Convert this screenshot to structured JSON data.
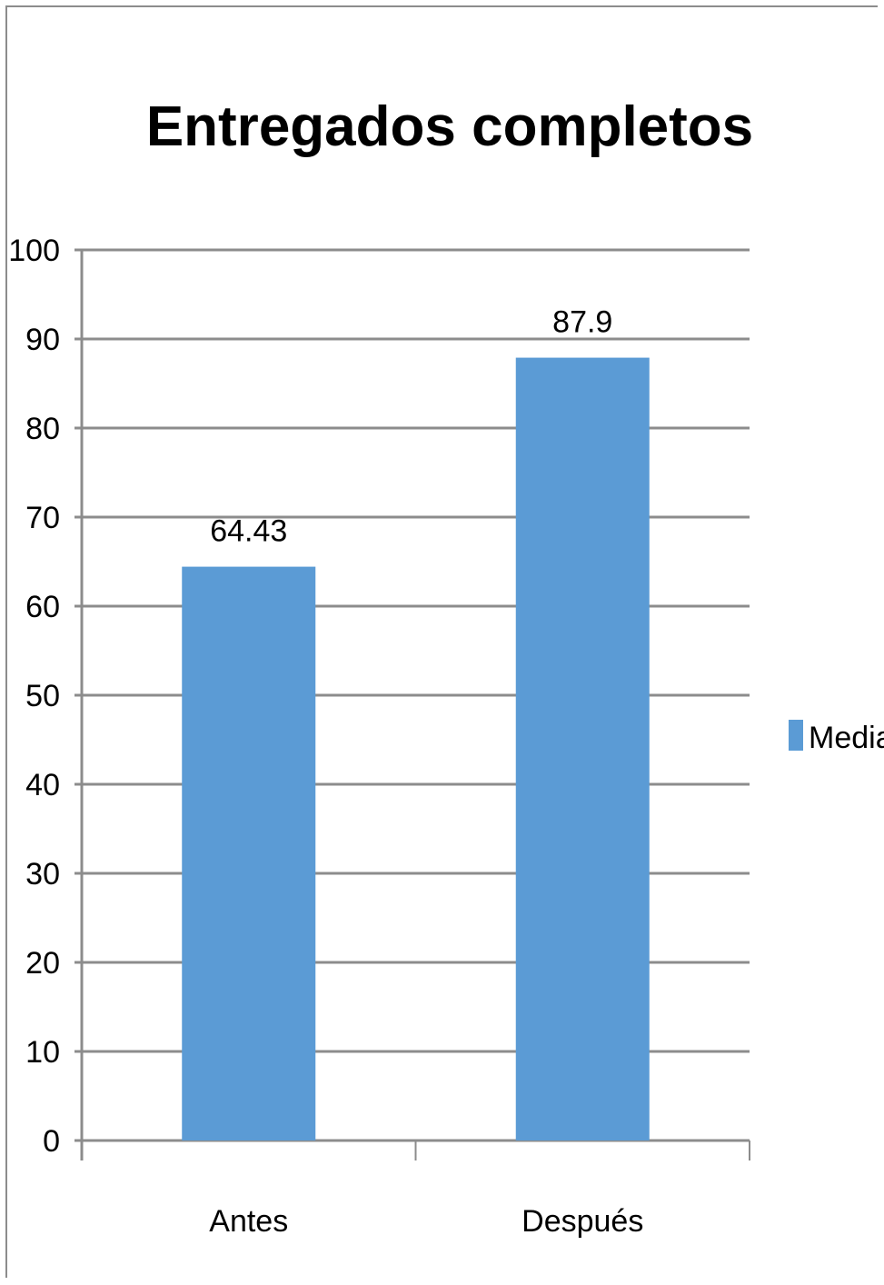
{
  "chart_data": {
    "type": "bar",
    "title": "Entregados completos",
    "categories": [
      "Antes",
      "Después"
    ],
    "series": [
      {
        "name": "Media",
        "values": [
          64.43,
          87.9
        ],
        "data_labels": [
          "64.43",
          "87.9"
        ],
        "color": "#5b9bd5"
      }
    ],
    "xlabel": "",
    "ylabel": "",
    "ylim": [
      0,
      100
    ],
    "yticks": [
      0,
      10,
      20,
      30,
      40,
      50,
      60,
      70,
      80,
      90,
      100
    ],
    "grid": true,
    "legend": "right"
  }
}
